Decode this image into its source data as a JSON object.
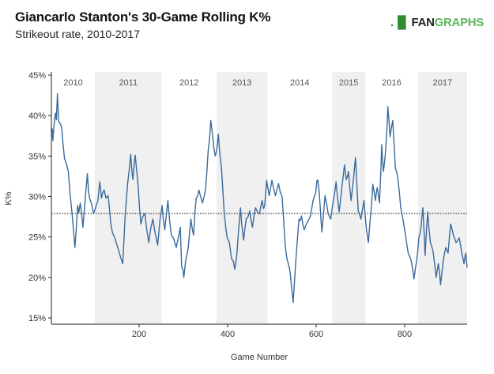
{
  "header": {
    "title": "Giancarlo Stanton's 30-Game Rolling K%",
    "subtitle": "Strikeout rate, 2010-2017",
    "logo": {
      "mark": ".▐▌",
      "part1": "FAN",
      "part2": "GRAPHS",
      "accent_color": "#5cb85c"
    }
  },
  "chart_data": {
    "type": "line",
    "title": "Giancarlo Stanton's 30-Game Rolling K%",
    "subtitle": "Strikeout rate, 2010-2017",
    "xlabel": "Game Number",
    "ylabel": "K%",
    "xlim": [
      1,
      941
    ],
    "ylim": [
      14.2,
      45.3
    ],
    "x_ticks": [
      200,
      400,
      600,
      800
    ],
    "y_ticks": [
      15,
      20,
      25,
      30,
      35,
      40,
      45
    ],
    "y_tick_labels": [
      "15%",
      "20%",
      "25%",
      "30%",
      "35%",
      "40%",
      "45%"
    ],
    "grid": false,
    "line_color": "#3a6a9b",
    "reference_line": {
      "value": 27.9,
      "style": "dotted",
      "color": "#333333"
    },
    "seasons": [
      {
        "label": "2010",
        "start": 1,
        "end": 100,
        "shaded": false
      },
      {
        "label": "2011",
        "start": 100,
        "end": 251,
        "shaded": true
      },
      {
        "label": "2012",
        "start": 251,
        "end": 375,
        "shaded": false
      },
      {
        "label": "2013",
        "start": 375,
        "end": 490,
        "shaded": true
      },
      {
        "label": "2014",
        "start": 490,
        "end": 636,
        "shaded": false
      },
      {
        "label": "2015",
        "start": 636,
        "end": 711,
        "shaded": true
      },
      {
        "label": "2016",
        "start": 711,
        "end": 830,
        "shaded": false
      },
      {
        "label": "2017",
        "start": 830,
        "end": 941,
        "shaded": true
      }
    ],
    "shade_color": "#f0f0f0",
    "points": [
      [
        1,
        38.5
      ],
      [
        4,
        38.3
      ],
      [
        5,
        36.9
      ],
      [
        8,
        39.0
      ],
      [
        11,
        40.3
      ],
      [
        13,
        39.5
      ],
      [
        15.5,
        42.7
      ],
      [
        18,
        39.3
      ],
      [
        22,
        39.0
      ],
      [
        25,
        38.6
      ],
      [
        28,
        36.5
      ],
      [
        31.5,
        34.7
      ],
      [
        36,
        34.0
      ],
      [
        40,
        33.1
      ],
      [
        43,
        31.0
      ],
      [
        46,
        29.2
      ],
      [
        50,
        27.0
      ],
      [
        55,
        23.7
      ],
      [
        58,
        26.0
      ],
      [
        61,
        28.9
      ],
      [
        64,
        28.0
      ],
      [
        67,
        29.2
      ],
      [
        70,
        28.0
      ],
      [
        73,
        26.2
      ],
      [
        78,
        29.5
      ],
      [
        83,
        32.8
      ],
      [
        86,
        30.5
      ],
      [
        88,
        29.8
      ],
      [
        93,
        29.0
      ],
      [
        97,
        27.9
      ],
      [
        100,
        28.3
      ],
      [
        103,
        28.9
      ],
      [
        107,
        29.5
      ],
      [
        111,
        31.8
      ],
      [
        115,
        29.8
      ],
      [
        118,
        30.5
      ],
      [
        121,
        30.8
      ],
      [
        125,
        29.8
      ],
      [
        130,
        30.1
      ],
      [
        133,
        28.5
      ],
      [
        136,
        26.6
      ],
      [
        140,
        25.5
      ],
      [
        145,
        24.9
      ],
      [
        150,
        24.0
      ],
      [
        154,
        23.3
      ],
      [
        158,
        22.5
      ],
      [
        163,
        21.7
      ],
      [
        166,
        25.0
      ],
      [
        168,
        27.2
      ],
      [
        171,
        29.5
      ],
      [
        174,
        31.5
      ],
      [
        178,
        33.5
      ],
      [
        181,
        35.2
      ],
      [
        184,
        33.0
      ],
      [
        186,
        32.1
      ],
      [
        189,
        34.0
      ],
      [
        191,
        35.1
      ],
      [
        195,
        33.0
      ],
      [
        198,
        31.1
      ],
      [
        201,
        28.5
      ],
      [
        204,
        26.6
      ],
      [
        208,
        27.5
      ],
      [
        213,
        27.9
      ],
      [
        217,
        26.0
      ],
      [
        222,
        24.3
      ],
      [
        226,
        26.0
      ],
      [
        231,
        27.2
      ],
      [
        236,
        25.5
      ],
      [
        242,
        24.0
      ],
      [
        247,
        27.0
      ],
      [
        252,
        28.9
      ],
      [
        255,
        27.0
      ],
      [
        258,
        25.9
      ],
      [
        262,
        28.0
      ],
      [
        265,
        29.5
      ],
      [
        269,
        27.0
      ],
      [
        273,
        25.2
      ],
      [
        278,
        24.8
      ],
      [
        284,
        23.7
      ],
      [
        289,
        25.0
      ],
      [
        293,
        26.2
      ],
      [
        296,
        21.3
      ],
      [
        299,
        21.0
      ],
      [
        301,
        20.0
      ],
      [
        305,
        22.0
      ],
      [
        308,
        22.8
      ],
      [
        311,
        23.7
      ],
      [
        314,
        25.5
      ],
      [
        317,
        27.2
      ],
      [
        320,
        26.0
      ],
      [
        323,
        25.2
      ],
      [
        326,
        28.0
      ],
      [
        329,
        29.8
      ],
      [
        332,
        30.0
      ],
      [
        335,
        30.8
      ],
      [
        339,
        30.0
      ],
      [
        343,
        29.2
      ],
      [
        347,
        30.0
      ],
      [
        350,
        30.8
      ],
      [
        353,
        33.0
      ],
      [
        356,
        35.7
      ],
      [
        359,
        37.0
      ],
      [
        362,
        39.4
      ],
      [
        366,
        37.5
      ],
      [
        369,
        36.0
      ],
      [
        372,
        35.0
      ],
      [
        374,
        35.4
      ],
      [
        377,
        36.5
      ],
      [
        379,
        37.7
      ],
      [
        382,
        35.5
      ],
      [
        386,
        33.5
      ],
      [
        389,
        31.0
      ],
      [
        392,
        28.2
      ],
      [
        396,
        26.0
      ],
      [
        399,
        24.9
      ],
      [
        404,
        24.3
      ],
      [
        409,
        22.3
      ],
      [
        413,
        22.0
      ],
      [
        416,
        21.0
      ],
      [
        419,
        22.0
      ],
      [
        421,
        23.0
      ],
      [
        425,
        26.0
      ],
      [
        429,
        28.6
      ],
      [
        432,
        26.5
      ],
      [
        436,
        24.6
      ],
      [
        439,
        26.0
      ],
      [
        442,
        27.2
      ],
      [
        446,
        27.5
      ],
      [
        450,
        28.2
      ],
      [
        453,
        27.0
      ],
      [
        456,
        26.2
      ],
      [
        460,
        27.8
      ],
      [
        463,
        28.6
      ],
      [
        468,
        28.0
      ],
      [
        472,
        27.9
      ],
      [
        475,
        28.8
      ],
      [
        478,
        29.5
      ],
      [
        481,
        28.5
      ],
      [
        484,
        28.9
      ],
      [
        486,
        30.5
      ],
      [
        488,
        32.0
      ],
      [
        491,
        31.0
      ],
      [
        494,
        30.1
      ],
      [
        497,
        31.0
      ],
      [
        500,
        32.0
      ],
      [
        504,
        31.0
      ],
      [
        508,
        30.1
      ],
      [
        512,
        31.0
      ],
      [
        515,
        31.6
      ],
      [
        519,
        30.5
      ],
      [
        523,
        30.0
      ],
      [
        526,
        27.5
      ],
      [
        529,
        24.9
      ],
      [
        531,
        23.5
      ],
      [
        534,
        22.3
      ],
      [
        538,
        21.5
      ],
      [
        541,
        20.7
      ],
      [
        545,
        18.5
      ],
      [
        548,
        16.9
      ],
      [
        551,
        19.5
      ],
      [
        554,
        22.0
      ],
      [
        558,
        25.0
      ],
      [
        561,
        27.2
      ],
      [
        564,
        27.0
      ],
      [
        567,
        27.6
      ],
      [
        570,
        26.5
      ],
      [
        573,
        25.9
      ],
      [
        577,
        26.5
      ],
      [
        581,
        26.9
      ],
      [
        584,
        27.2
      ],
      [
        587,
        27.6
      ],
      [
        590,
        28.5
      ],
      [
        593,
        29.5
      ],
      [
        596,
        30.0
      ],
      [
        599,
        30.5
      ],
      [
        602,
        32.0
      ],
      [
        604,
        32.0
      ],
      [
        607,
        30.5
      ],
      [
        609,
        28.9
      ],
      [
        611,
        27.0
      ],
      [
        613,
        25.6
      ],
      [
        616,
        27.5
      ],
      [
        620,
        30.1
      ],
      [
        624,
        29.0
      ],
      [
        627,
        27.9
      ],
      [
        630,
        27.5
      ],
      [
        633,
        27.2
      ],
      [
        636,
        28.5
      ],
      [
        639,
        29.5
      ],
      [
        642,
        30.5
      ],
      [
        645,
        31.8
      ],
      [
        648,
        30.0
      ],
      [
        652,
        28.1
      ],
      [
        655,
        29.5
      ],
      [
        658,
        31.1
      ],
      [
        661,
        32.5
      ],
      [
        664,
        33.9
      ],
      [
        666,
        33.0
      ],
      [
        668,
        32.1
      ],
      [
        671,
        32.5
      ],
      [
        673,
        33.1
      ],
      [
        676,
        31.0
      ],
      [
        679,
        29.5
      ],
      [
        682,
        31.0
      ],
      [
        685,
        32.5
      ],
      [
        687,
        33.8
      ],
      [
        689,
        34.8
      ],
      [
        692,
        31.5
      ],
      [
        695,
        28.2
      ],
      [
        698,
        27.8
      ],
      [
        701,
        27.2
      ],
      [
        705,
        28.5
      ],
      [
        708,
        29.5
      ],
      [
        711,
        27.5
      ],
      [
        713,
        26.2
      ],
      [
        716,
        25.0
      ],
      [
        718,
        24.3
      ],
      [
        721,
        26.5
      ],
      [
        725,
        28.9
      ],
      [
        728,
        31.5
      ],
      [
        731,
        30.5
      ],
      [
        734,
        29.5
      ],
      [
        736,
        30.5
      ],
      [
        738,
        31.1
      ],
      [
        741,
        30.0
      ],
      [
        743,
        29.2
      ],
      [
        746,
        33.0
      ],
      [
        748,
        36.4
      ],
      [
        750,
        34.5
      ],
      [
        752,
        33.1
      ],
      [
        755,
        34.5
      ],
      [
        757,
        35.7
      ],
      [
        760,
        38.5
      ],
      [
        762,
        41.1
      ],
      [
        765,
        39.0
      ],
      [
        767,
        37.4
      ],
      [
        770,
        38.5
      ],
      [
        773,
        39.4
      ],
      [
        776,
        36.5
      ],
      [
        779,
        33.5
      ],
      [
        782,
        33.0
      ],
      [
        784,
        32.5
      ],
      [
        788,
        30.5
      ],
      [
        791,
        28.6
      ],
      [
        794,
        27.8
      ],
      [
        796,
        27.2
      ],
      [
        799,
        26.2
      ],
      [
        802,
        25.2
      ],
      [
        805,
        24.0
      ],
      [
        808,
        23.0
      ],
      [
        812,
        22.5
      ],
      [
        815,
        22.0
      ],
      [
        818,
        21.0
      ],
      [
        821,
        19.8
      ],
      [
        824,
        21.0
      ],
      [
        827,
        22.0
      ],
      [
        830,
        23.5
      ],
      [
        832,
        24.9
      ],
      [
        835,
        25.5
      ],
      [
        837,
        26.2
      ],
      [
        839,
        27.5
      ],
      [
        841,
        28.6
      ],
      [
        844,
        25.5
      ],
      [
        846,
        22.7
      ],
      [
        849,
        25.5
      ],
      [
        852,
        28.1
      ],
      [
        855,
        26.0
      ],
      [
        858,
        24.3
      ],
      [
        861,
        23.8
      ],
      [
        864,
        23.3
      ],
      [
        868,
        21.5
      ],
      [
        871,
        20.0
      ],
      [
        874,
        21.0
      ],
      [
        876,
        21.7
      ],
      [
        879,
        20.5
      ],
      [
        881,
        19.1
      ],
      [
        884,
        20.5
      ],
      [
        887,
        22.0
      ],
      [
        890,
        23.0
      ],
      [
        893,
        23.7
      ],
      [
        896,
        23.3
      ],
      [
        898,
        23.0
      ],
      [
        901,
        25.0
      ],
      [
        904,
        26.6
      ],
      [
        907,
        26.0
      ],
      [
        910,
        25.2
      ],
      [
        913,
        24.8
      ],
      [
        916,
        24.3
      ],
      [
        919,
        24.5
      ],
      [
        923,
        24.9
      ],
      [
        926,
        24.0
      ],
      [
        929,
        23.0
      ],
      [
        932,
        22.3
      ],
      [
        934,
        21.7
      ],
      [
        936,
        22.5
      ],
      [
        938,
        23.0
      ],
      [
        941,
        21.2
      ]
    ]
  }
}
